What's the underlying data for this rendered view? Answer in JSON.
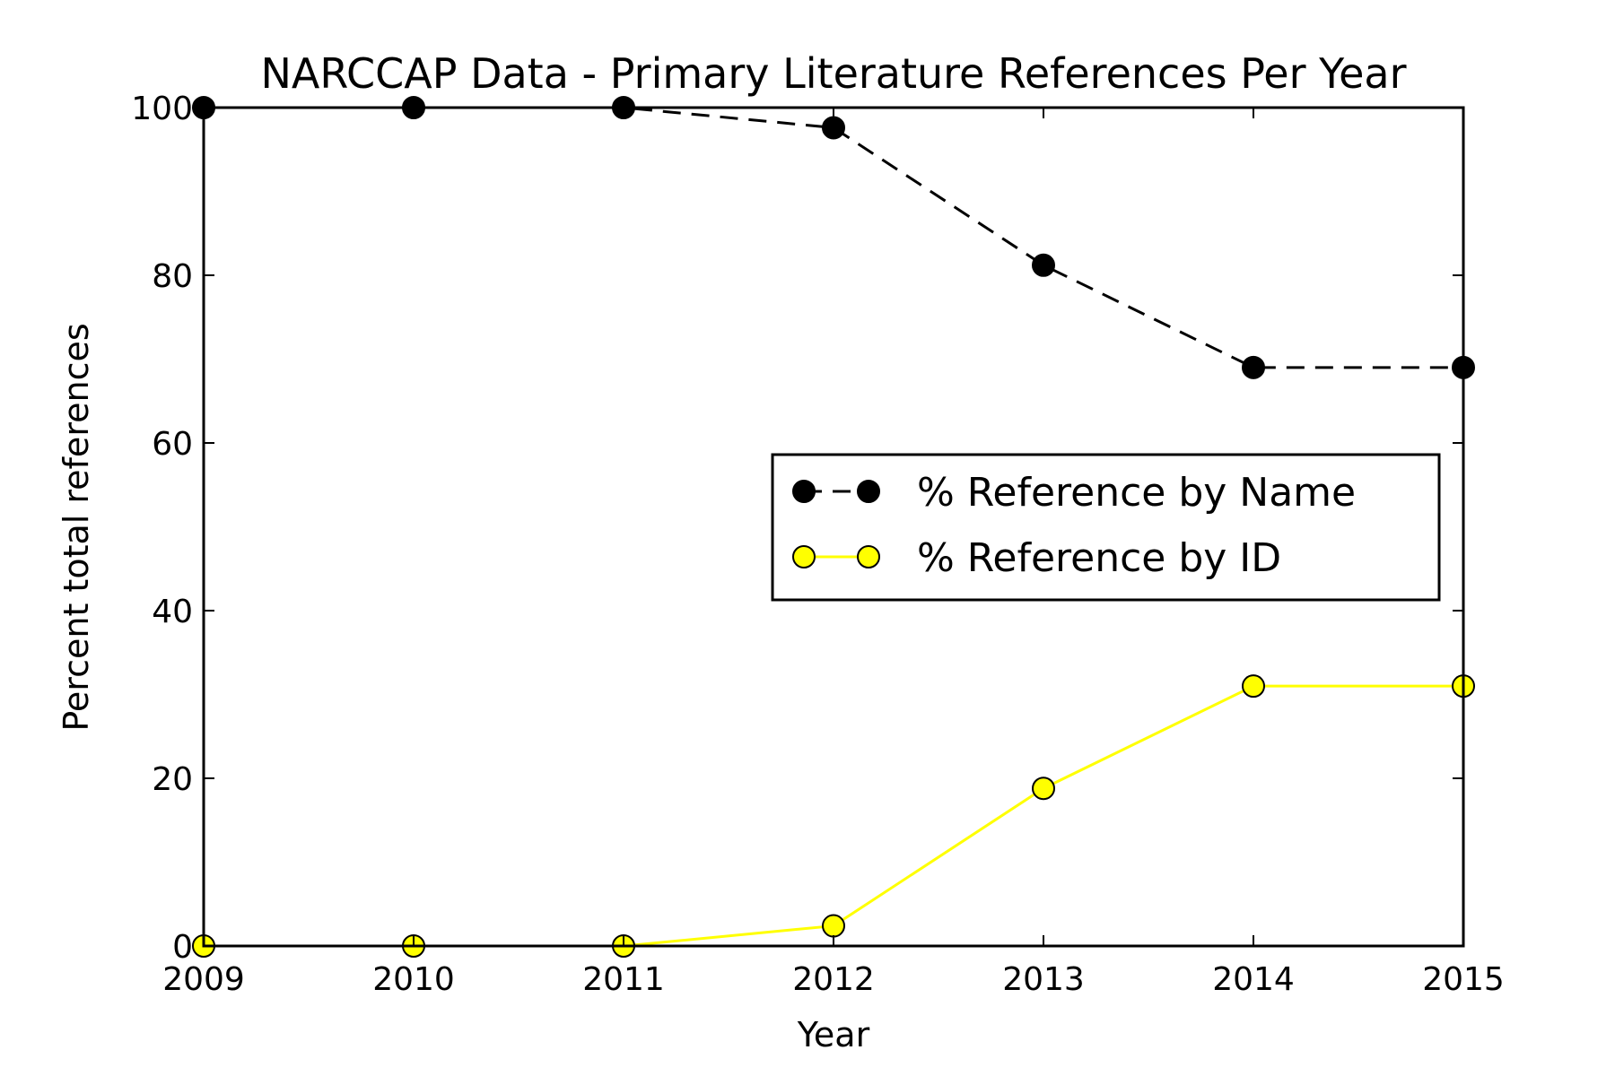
{
  "chart_data": {
    "type": "line",
    "title": "NARCCAP Data - Primary Literature References Per Year",
    "xlabel": "Year",
    "ylabel": "Percent total references",
    "x": [
      2009,
      2010,
      2011,
      2012,
      2013,
      2014,
      2015
    ],
    "xlim": [
      2009,
      2015
    ],
    "ylim": [
      0,
      100
    ],
    "xticks": [
      "2009",
      "2010",
      "2011",
      "2012",
      "2013",
      "2014",
      "2015"
    ],
    "yticks": [
      "0",
      "20",
      "40",
      "60",
      "80",
      "100"
    ],
    "grid": false,
    "legend_position": "center-right",
    "series": [
      {
        "name": "% Reference by Name",
        "values": [
          100,
          100,
          100,
          97.6,
          81.2,
          69.0,
          69.0
        ],
        "color": "#000000",
        "marker_color": "#000000",
        "line_style": "dashed"
      },
      {
        "name": "% Reference by ID",
        "values": [
          0,
          0,
          0,
          2.4,
          18.8,
          31.0,
          31.0
        ],
        "color": "#ffff00",
        "marker_color": "#ffff00",
        "line_style": "solid"
      }
    ]
  }
}
